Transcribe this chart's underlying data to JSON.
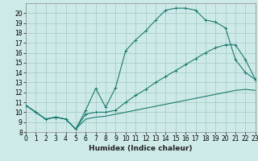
{
  "xlabel": "Humidex (Indice chaleur)",
  "x_values": [
    0,
    1,
    2,
    3,
    4,
    5,
    6,
    7,
    8,
    9,
    10,
    11,
    12,
    13,
    14,
    15,
    16,
    17,
    18,
    19,
    20,
    21,
    22,
    23
  ],
  "line1": [
    10.7,
    10.0,
    9.3,
    9.5,
    9.3,
    8.3,
    10.2,
    12.4,
    10.5,
    12.5,
    16.2,
    17.3,
    18.2,
    19.3,
    20.3,
    20.5,
    20.5,
    20.3,
    19.3,
    19.1,
    18.5,
    15.3,
    14.0,
    13.3
  ],
  "line2": [
    10.7,
    10.0,
    9.3,
    9.5,
    9.3,
    8.3,
    9.8,
    10.0,
    10.0,
    10.2,
    11.0,
    11.7,
    12.3,
    13.0,
    13.6,
    14.2,
    14.8,
    15.4,
    16.0,
    16.5,
    16.8,
    16.8,
    15.3,
    13.3
  ],
  "line3": [
    10.7,
    10.0,
    9.3,
    9.5,
    9.3,
    8.3,
    9.3,
    9.5,
    9.6,
    9.8,
    10.0,
    10.2,
    10.4,
    10.6,
    10.8,
    11.0,
    11.2,
    11.4,
    11.6,
    11.8,
    12.0,
    12.2,
    12.3,
    12.2
  ],
  "line_color": "#1a7a6e",
  "bg_color": "#ceeae8",
  "grid_color": "#a0c8c4",
  "ylim": [
    8,
    21
  ],
  "xlim": [
    0,
    23
  ],
  "yticks": [
    8,
    9,
    10,
    11,
    12,
    13,
    14,
    15,
    16,
    17,
    18,
    19,
    20
  ],
  "xticks": [
    0,
    1,
    2,
    3,
    4,
    5,
    6,
    7,
    8,
    9,
    10,
    11,
    12,
    13,
    14,
    15,
    16,
    17,
    18,
    19,
    20,
    21,
    22,
    23
  ],
  "tick_fontsize": 5.5,
  "xlabel_fontsize": 6.5
}
